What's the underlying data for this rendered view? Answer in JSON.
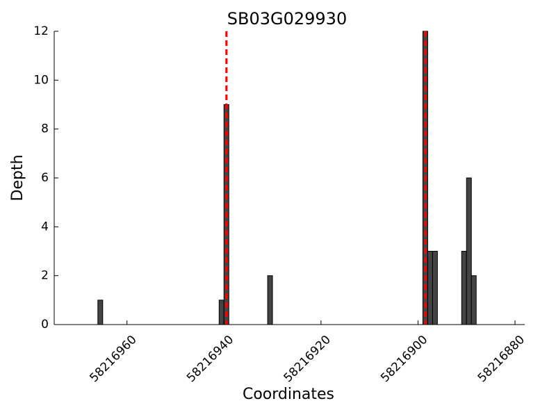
{
  "chart_data": {
    "type": "bar",
    "title": "SB03G029930",
    "xlabel": "Coordinates",
    "ylabel": "Depth",
    "x": [
      58216965,
      58216940,
      58216939,
      58216930,
      58216898,
      58216897,
      58216896,
      58216890,
      58216889,
      58216888
    ],
    "values": [
      1,
      1,
      9,
      2,
      12,
      3,
      3,
      3,
      6,
      2
    ],
    "color": "#444444",
    "vlines": [
      58216939.5,
      58216898.5
    ],
    "vline_color": "#ff0000",
    "xlim": [
      58216975,
      58216878
    ],
    "xticks": [
      58216960,
      58216940,
      58216920,
      58216900,
      58216880
    ],
    "ylim": [
      0,
      12
    ],
    "yticks": [
      0,
      2,
      4,
      6,
      8,
      10,
      12
    ]
  }
}
